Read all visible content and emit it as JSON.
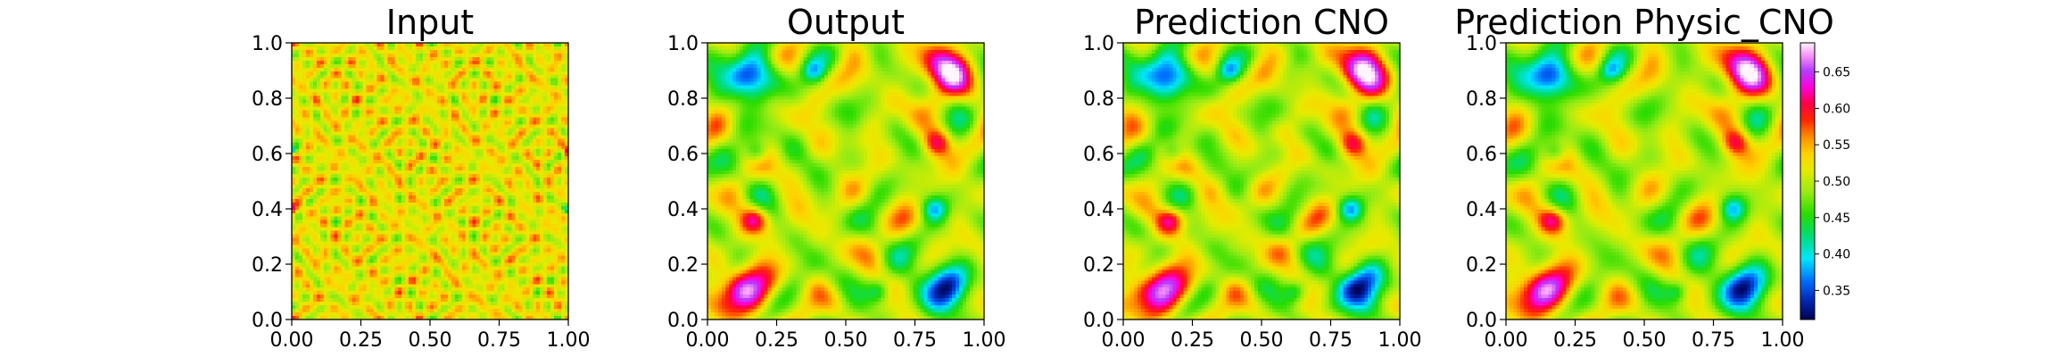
{
  "figure": {
    "colormap": "gist_ncar-like (navy, blue, cyan, green, yellow, orange, red, magenta, pink, white)"
  },
  "chart_data": [
    {
      "type": "heatmap",
      "title": "Input",
      "xlim": [
        0.0,
        1.0
      ],
      "ylim": [
        0.0,
        1.0
      ],
      "xticks": [
        "0.00",
        "0.25",
        "0.50",
        "0.75",
        "1.00"
      ],
      "yticks": [
        "0.0",
        "0.2",
        "0.4",
        "0.6",
        "0.8",
        "1.0"
      ],
      "grid": false,
      "value_range": [
        0.44,
        0.6
      ],
      "pattern": "fine-scale symmetric noise, mostly yellow-green with scattered red/orange spots"
    },
    {
      "type": "heatmap",
      "title": "Output",
      "xlim": [
        0.0,
        1.0
      ],
      "ylim": [
        0.0,
        1.0
      ],
      "xticks": [
        "0.00",
        "0.25",
        "0.50",
        "0.75",
        "1.00"
      ],
      "yticks": [
        "0.0",
        "0.2",
        "0.4",
        "0.6",
        "0.8",
        "1.0"
      ],
      "grid": false,
      "value_range": [
        0.32,
        0.68
      ],
      "pattern": "large-scale blobs: magenta/red hot spots at upper-right and lower-left, cyan/blue cold spots at upper-left and lower-right"
    },
    {
      "type": "heatmap",
      "title": "Prediction CNO",
      "xlim": [
        0.0,
        1.0
      ],
      "ylim": [
        0.0,
        1.0
      ],
      "xticks": [
        "0.00",
        "0.25",
        "0.50",
        "0.75",
        "1.00"
      ],
      "yticks": [
        "0.0",
        "0.2",
        "0.4",
        "0.6",
        "0.8",
        "1.0"
      ],
      "grid": false,
      "value_range": [
        0.32,
        0.68
      ],
      "pattern": "nearly identical to Output"
    },
    {
      "type": "heatmap",
      "title": "Prediction Physic_CNO",
      "xlim": [
        0.0,
        1.0
      ],
      "ylim": [
        0.0,
        1.0
      ],
      "xticks": [
        "0.00",
        "0.25",
        "0.50",
        "0.75",
        "1.00"
      ],
      "yticks": [
        "0.0",
        "0.2",
        "0.4",
        "0.6",
        "0.8",
        "1.0"
      ],
      "grid": false,
      "value_range": [
        0.32,
        0.68
      ],
      "pattern": "nearly identical to Output",
      "colorbar": {
        "range": [
          0.31,
          0.69
        ],
        "ticks": [
          "0.35",
          "0.40",
          "0.45",
          "0.50",
          "0.55",
          "0.60",
          "0.65"
        ],
        "tick_values": [
          0.35,
          0.4,
          0.45,
          0.5,
          0.55,
          0.6,
          0.65
        ]
      }
    }
  ]
}
